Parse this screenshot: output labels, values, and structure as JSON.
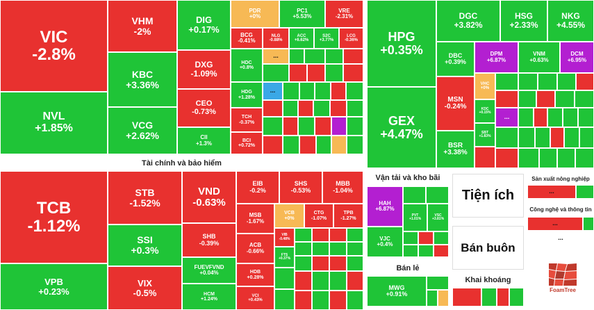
{
  "chart_data": {
    "type": "treemap",
    "title": "",
    "sectors": [
      {
        "name": "Tài chính và bảo hiểm"
      },
      {
        "name": "Vận tải và kho bãi"
      },
      {
        "name": "Tiện ích"
      },
      {
        "name": "Bán buôn"
      },
      {
        "name": "Bán lẻ"
      },
      {
        "name": "Khai khoáng"
      },
      {
        "name": "Sản xuất nông nghiệp"
      },
      {
        "name": "Công nghệ và thông tin"
      }
    ],
    "tiles": [
      {
        "sym": "VIC",
        "chg": "-2.8%",
        "value": -2.8,
        "color": "red"
      },
      {
        "sym": "NVL",
        "chg": "+1.85%",
        "value": 1.85,
        "color": "green"
      },
      {
        "sym": "VHM",
        "chg": "-2%",
        "value": -2,
        "color": "red"
      },
      {
        "sym": "KBC",
        "chg": "+3.36%",
        "value": 3.36,
        "color": "green"
      },
      {
        "sym": "VCG",
        "chg": "+2.62%",
        "value": 2.62,
        "color": "green"
      },
      {
        "sym": "DIG",
        "chg": "+0.17%",
        "value": 0.17,
        "color": "green"
      },
      {
        "sym": "DXG",
        "chg": "-1.09%",
        "value": -1.09,
        "color": "red"
      },
      {
        "sym": "CEO",
        "chg": "-0.73%",
        "value": -0.73,
        "color": "red"
      },
      {
        "sym": "CII",
        "chg": "+1.3%",
        "value": 1.3,
        "color": "green"
      },
      {
        "sym": "PDR",
        "chg": "+0%",
        "value": 0,
        "color": "yellow"
      },
      {
        "sym": "PC1",
        "chg": "+5.53%",
        "value": 5.53,
        "color": "green"
      },
      {
        "sym": "VRE",
        "chg": "-2.31%",
        "value": -2.31,
        "color": "red"
      },
      {
        "sym": "BCG",
        "chg": "-0.41%",
        "value": -0.41,
        "color": "red"
      },
      {
        "sym": "NLG",
        "chg": "-0.88%",
        "value": -0.88,
        "color": "red"
      },
      {
        "sym": "ACC",
        "chg": "+6.62%",
        "value": 6.62,
        "color": "green"
      },
      {
        "sym": "S2C",
        "chg": "+3.77%",
        "value": 3.77,
        "color": "green"
      },
      {
        "sym": "LCG",
        "chg": "-0.36%",
        "value": -0.36,
        "color": "red"
      },
      {
        "sym": "HDC",
        "chg": "+0.8%",
        "value": 0.8,
        "color": "green"
      },
      {
        "sym": "HDG",
        "chg": "+1.28%",
        "value": 1.28,
        "color": "green"
      },
      {
        "sym": "TCH",
        "chg": "-0.37%",
        "value": -0.37,
        "color": "red"
      },
      {
        "sym": "BCI",
        "chg": "+0.72%",
        "value": 0.72,
        "color": "red"
      },
      {
        "sym": "HPG",
        "chg": "+0.35%",
        "value": 0.35,
        "color": "green"
      },
      {
        "sym": "GEX",
        "chg": "+4.47%",
        "value": 4.47,
        "color": "green"
      },
      {
        "sym": "DGC",
        "chg": "+3.82%",
        "value": 3.82,
        "color": "green"
      },
      {
        "sym": "HSG",
        "chg": "+2.33%",
        "value": 2.33,
        "color": "green"
      },
      {
        "sym": "NKG",
        "chg": "+4.55%",
        "value": 4.55,
        "color": "green"
      },
      {
        "sym": "DBC",
        "chg": "+0.39%",
        "value": 0.39,
        "color": "green"
      },
      {
        "sym": "DPM",
        "chg": "+6.87%",
        "value": 6.87,
        "color": "purple"
      },
      {
        "sym": "VNM",
        "chg": "+0.63%",
        "value": 0.63,
        "color": "green"
      },
      {
        "sym": "DCM",
        "chg": "+6.95%",
        "value": 6.95,
        "color": "purple"
      },
      {
        "sym": "MSN",
        "chg": "-0.24%",
        "value": -0.24,
        "color": "red"
      },
      {
        "sym": "VHC",
        "chg": "+0%",
        "value": 0,
        "color": "yellow"
      },
      {
        "sym": "KDC",
        "chg": "+0.15%",
        "value": 0.15,
        "color": "green"
      },
      {
        "sym": "SBT",
        "chg": "+1.83%",
        "value": 1.83,
        "color": "green"
      },
      {
        "sym": "BSR",
        "chg": "+3.38%",
        "value": 3.38,
        "color": "green"
      },
      {
        "sym": "TCB",
        "chg": "-1.12%",
        "value": -1.12,
        "color": "red"
      },
      {
        "sym": "VPB",
        "chg": "+0.23%",
        "value": 0.23,
        "color": "green"
      },
      {
        "sym": "STB",
        "chg": "-1.52%",
        "value": -1.52,
        "color": "red"
      },
      {
        "sym": "SSI",
        "chg": "+0.3%",
        "value": 0.3,
        "color": "green"
      },
      {
        "sym": "VIX",
        "chg": "-0.5%",
        "value": -0.5,
        "color": "red"
      },
      {
        "sym": "VND",
        "chg": "-0.63%",
        "value": -0.63,
        "color": "red"
      },
      {
        "sym": "SHB",
        "chg": "-0.39%",
        "value": -0.39,
        "color": "red"
      },
      {
        "sym": "FUEVFVND",
        "chg": "+0.04%",
        "value": 0.04,
        "color": "green"
      },
      {
        "sym": "HCM",
        "chg": "+1.24%",
        "value": 1.24,
        "color": "green"
      },
      {
        "sym": "EIB",
        "chg": "-0.2%",
        "value": -0.2,
        "color": "red"
      },
      {
        "sym": "SHS",
        "chg": "-0.53%",
        "value": -0.53,
        "color": "red"
      },
      {
        "sym": "MBB",
        "chg": "-1.04%",
        "value": -1.04,
        "color": "red"
      },
      {
        "sym": "MSB",
        "chg": "-1.67%",
        "value": -1.67,
        "color": "red"
      },
      {
        "sym": "VCB",
        "chg": "+0%",
        "value": 0,
        "color": "yellow"
      },
      {
        "sym": "CTG",
        "chg": "-1.07%",
        "value": -1.07,
        "color": "red"
      },
      {
        "sym": "TPB",
        "chg": "-1.27%",
        "value": -1.27,
        "color": "red"
      },
      {
        "sym": "ACB",
        "chg": "-0.66%",
        "value": -0.66,
        "color": "red"
      },
      {
        "sym": "VIB",
        "chg": "-0.48%",
        "value": -0.48,
        "color": "red"
      },
      {
        "sym": "FTS",
        "chg": "+0.37%",
        "value": 0.37,
        "color": "green"
      },
      {
        "sym": "HDB",
        "chg": "+0.28%",
        "value": 0.28,
        "color": "red"
      },
      {
        "sym": "VCI",
        "chg": "+0.43%",
        "value": 0.43,
        "color": "red"
      },
      {
        "sym": "HAH",
        "chg": "+6.87%",
        "value": 6.87,
        "color": "purple"
      },
      {
        "sym": "PVT",
        "chg": "+1.01%",
        "value": 1.01,
        "color": "green"
      },
      {
        "sym": "VSC",
        "chg": "+3.81%",
        "value": 3.81,
        "color": "green"
      },
      {
        "sym": "VJC",
        "chg": "+0.4%",
        "value": 0.4,
        "color": "green"
      },
      {
        "sym": "MWG",
        "chg": "+0.91%",
        "value": 0.91,
        "color": "green"
      }
    ]
  },
  "labels": {
    "finance_sector": "Tài chính và bảo hiểm",
    "transport_sector": "Vận tải và kho bãi",
    "utilities": "Tiện ích",
    "wholesale": "Bán buôn",
    "retail": "Bán lẻ",
    "mining": "Khai khoáng",
    "agriculture": "Sản xuất nông nghiệp",
    "it": "Công nghệ và thông tin",
    "ellipsis": "...",
    "logo_text": "FoamTree"
  },
  "colors": {
    "red": "#e8312f",
    "green": "#1fc437",
    "yellow": "#f7b955",
    "purple": "#b31fd1",
    "blue": "#3aa8e6"
  }
}
